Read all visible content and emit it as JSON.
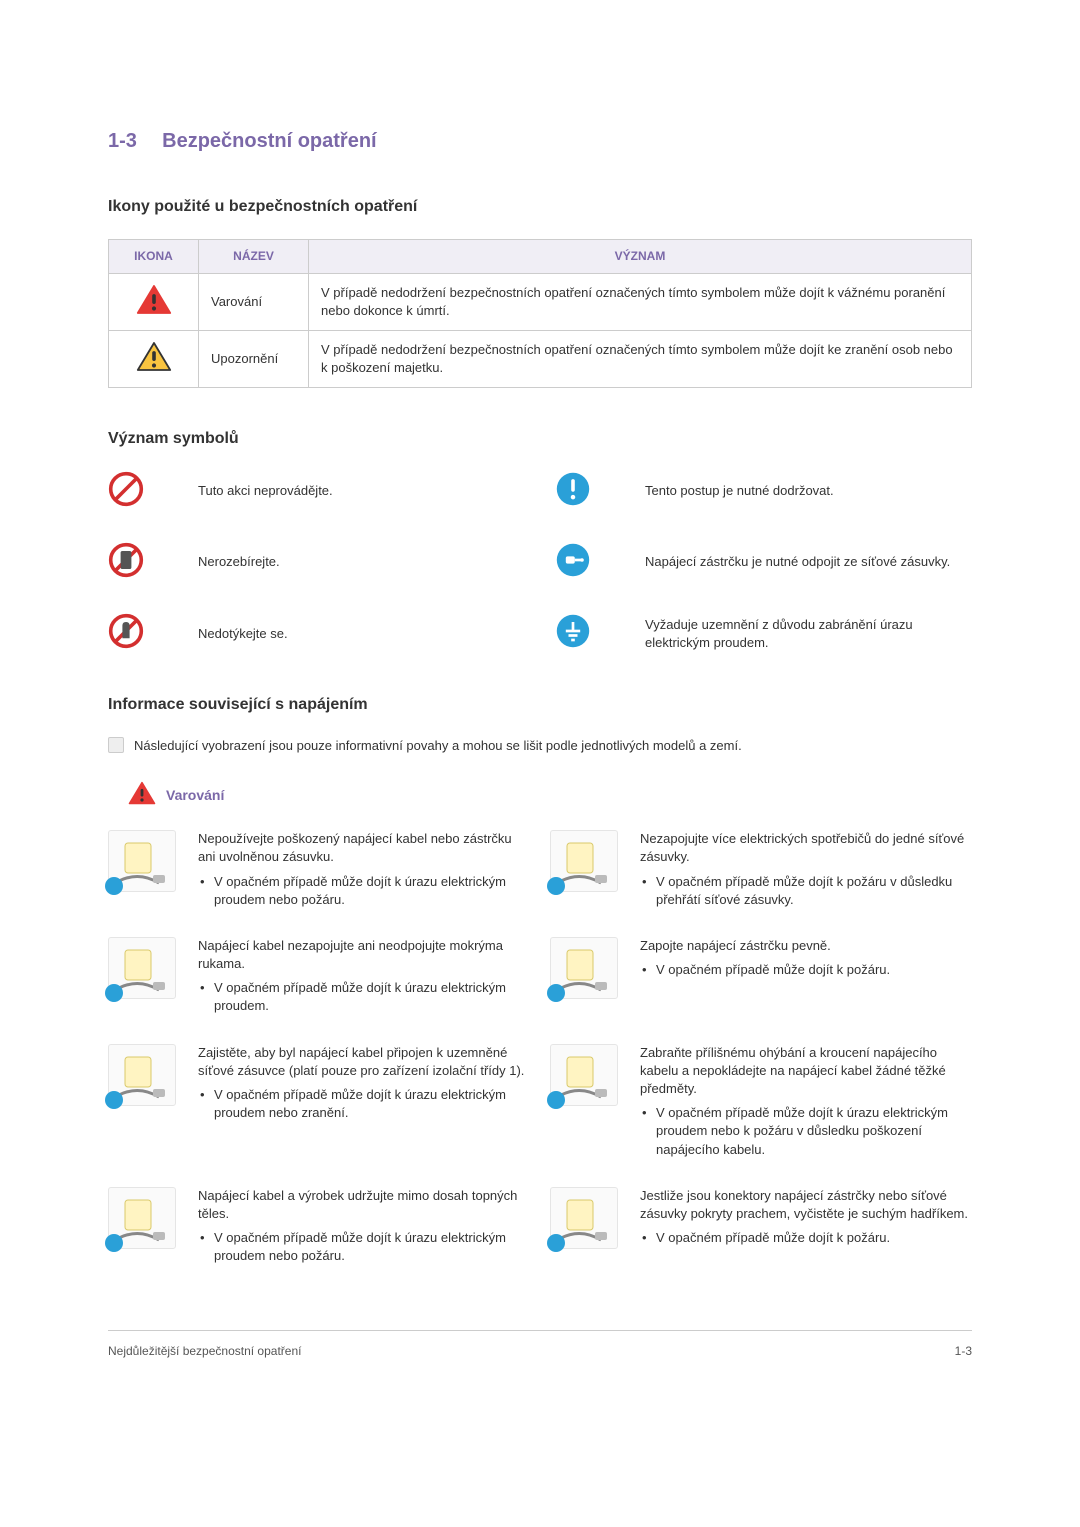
{
  "section": {
    "number": "1-3",
    "title": "Bezpečnostní opatření"
  },
  "icons_heading": "Ikony použité u bezpečnostních opatření",
  "icon_table": {
    "headers": {
      "icon": "IKONA",
      "name": "NÁZEV",
      "meaning": "VÝZNAM"
    },
    "rows": [
      {
        "name": "Varování",
        "meaning": "V případě nedodržení bezpečnostních opatření označených tímto symbolem může dojít k vážnému poranění nebo dokonce k úmrtí.",
        "icon": "warn-red"
      },
      {
        "name": "Upozornění",
        "meaning": "V případě nedodržení bezpečnostních opatření označených tímto symbolem může dojít ke zranění osob nebo k poškození majetku.",
        "icon": "warn-yellow"
      }
    ]
  },
  "symbols_heading": "Význam symbolů",
  "symbols": {
    "left": [
      {
        "icon": "prohibit",
        "text": "Tuto akci neprovádějte."
      },
      {
        "icon": "no-disassemble",
        "text": "Nerozebírejte."
      },
      {
        "icon": "no-touch",
        "text": "Nedotýkejte se."
      }
    ],
    "right": [
      {
        "icon": "must",
        "text": "Tento postup je nutné dodržovat."
      },
      {
        "icon": "unplug",
        "text": "Napájecí zástrčku je nutné odpojit ze síťové zásuvky."
      },
      {
        "icon": "ground",
        "text": "Vyžaduje uzemnění z důvodu zabránění úrazu elektrickým proudem."
      }
    ]
  },
  "power_heading": "Informace související s napájením",
  "power_note": "Následující vyobrazení jsou pouze informativní povahy a mohou se lišit podle jednotlivých modelů a zemí.",
  "warning_label": "Varování",
  "power_items": [
    {
      "left": {
        "main": "Nepoužívejte poškozený napájecí kabel nebo zástrčku ani uvolněnou zásuvku.",
        "bullets": [
          "V opačném případě může dojít k úrazu elektrickým proudem nebo požáru."
        ]
      },
      "right": {
        "main": "Nezapojujte více elektrických spotřebičů do jedné síťové zásuvky.",
        "bullets": [
          "V opačném případě může dojít k požáru v důsledku přehřátí síťové zásuvky."
        ]
      }
    },
    {
      "left": {
        "main": "Napájecí kabel nezapojujte ani neodpojujte mokrýma rukama.",
        "bullets": [
          "V opačném případě může dojít k úrazu elektrickým proudem."
        ]
      },
      "right": {
        "main": "Zapojte napájecí zástrčku pevně.",
        "bullets": [
          "V opačném případě může dojít k požáru."
        ]
      }
    },
    {
      "left": {
        "main": "Zajistěte, aby byl napájecí kabel připojen k uzemněné síťové zásuvce (platí pouze pro zařízení izolační třídy 1).",
        "bullets": [
          "V opačném případě může dojít k úrazu elektrickým proudem nebo zranění."
        ]
      },
      "right": {
        "main": "Zabraňte přílišnému ohýbání a kroucení napájecího kabelu a nepokládejte na napájecí kabel žádné těžké předměty.",
        "bullets": [
          "V opačném případě může dojít k úrazu elektrickým proudem nebo k požáru v důsledku poškození napájecího kabelu."
        ]
      }
    },
    {
      "left": {
        "main": "Napájecí kabel a výrobek udržujte mimo dosah topných těles.",
        "bullets": [
          "V opačném případě může dojít k úrazu elektrickým proudem nebo požáru."
        ]
      },
      "right": {
        "main": "Jestliže jsou konektory napájecí zástrčky nebo síťové zásuvky pokryty prachem, vyčistěte je suchým hadříkem.",
        "bullets": [
          "V opačném případě může dojít k požáru."
        ]
      }
    }
  ],
  "footer": {
    "left": "Nejdůležitější bezpečnostní opatření",
    "right": "1-3"
  },
  "colors": {
    "accent": "#7b68a8",
    "header_bg": "#f0eef5",
    "border": "#cccccc",
    "blue_icon": "#2aa0d8",
    "red_ring": "#d32f2f",
    "warn_red": "#e53935",
    "warn_yellow": "#f9c440"
  }
}
